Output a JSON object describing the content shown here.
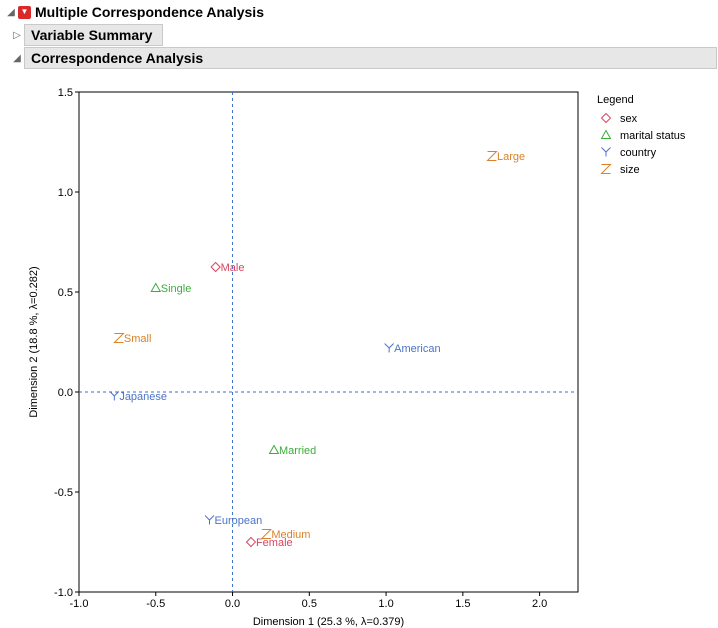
{
  "panels": {
    "main_title": "Multiple Correspondence Analysis",
    "variable_summary": "Variable Summary",
    "correspondence": "Correspondence Analysis"
  },
  "colors": {
    "sex": "#d6475f",
    "marital status": "#3cad3c",
    "country": "#4a74c9",
    "size": "#d9822b",
    "refline": "#3b6fc9"
  },
  "chart_data": {
    "type": "scatter",
    "xlabel": "Dimension 1  (25.3 %, λ=0.379)",
    "ylabel": "Dimension 2  (18.8 %, λ=0.282)",
    "xlim": [
      -1.0,
      2.25
    ],
    "ylim": [
      -1.0,
      1.5
    ],
    "xticks": [
      "-1.0",
      "-0.5",
      "0.0",
      "0.5",
      "1.0",
      "1.5",
      "2.0"
    ],
    "yticks": [
      "-1.0",
      "-0.5",
      "0.0",
      "0.5",
      "1.0",
      "1.5"
    ],
    "grid": false,
    "reference_lines": {
      "x": 0,
      "y": 0
    },
    "legend": {
      "title": "Legend",
      "placement": "right",
      "entries": [
        {
          "name": "sex",
          "symbol": "diamond"
        },
        {
          "name": "marital status",
          "symbol": "triangle"
        },
        {
          "name": "country",
          "symbol": "Y"
        },
        {
          "name": "size",
          "symbol": "Z"
        }
      ]
    },
    "series": [
      {
        "name": "sex",
        "symbol": "diamond",
        "points": [
          {
            "label": "Male",
            "x": -0.11,
            "y": 0.625
          },
          {
            "label": "Female",
            "x": 0.12,
            "y": -0.75
          }
        ]
      },
      {
        "name": "marital status",
        "symbol": "triangle",
        "points": [
          {
            "label": "Single",
            "x": -0.5,
            "y": 0.52
          },
          {
            "label": "Married",
            "x": 0.27,
            "y": -0.29
          }
        ]
      },
      {
        "name": "country",
        "symbol": "Y",
        "points": [
          {
            "label": "American",
            "x": 1.02,
            "y": 0.22
          },
          {
            "label": "Japanese",
            "x": -0.77,
            "y": -0.02
          },
          {
            "label": "European",
            "x": -0.15,
            "y": -0.64
          }
        ]
      },
      {
        "name": "size",
        "symbol": "Z",
        "points": [
          {
            "label": "Large",
            "x": 1.69,
            "y": 1.18
          },
          {
            "label": "Small",
            "x": -0.74,
            "y": 0.27
          },
          {
            "label": "Medium",
            "x": 0.22,
            "y": -0.71
          }
        ]
      }
    ]
  }
}
